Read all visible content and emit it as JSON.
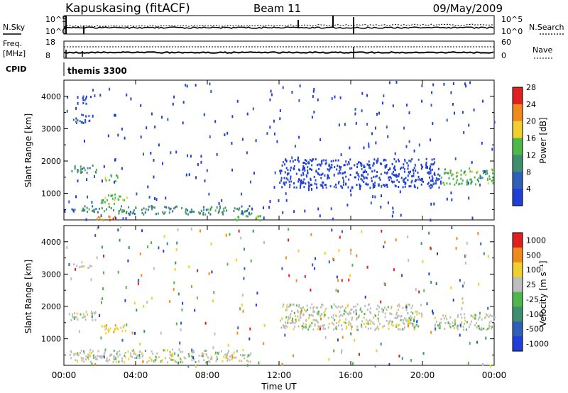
{
  "header": {
    "station": "Kapuskasing (fitACF)",
    "beam": "Beam 11",
    "date": "09/May/2009"
  },
  "params": {
    "nsky_label": "N.Sky",
    "nsearch_label": "N.Search",
    "freq_label": "Freq.",
    "freq_unit": "[MHz]",
    "nave_label": "Nave",
    "cpid_label": "CPID",
    "cpid_value": "themis 3300",
    "noise_ticks": [
      "10^5",
      "10^0"
    ],
    "noise_right_ticks": [
      "10^5",
      "10^0"
    ],
    "freq_ticks": [
      "18",
      "8"
    ],
    "nave_ticks": [
      "60",
      "0"
    ]
  },
  "chart_data": [
    {
      "type": "heatmap",
      "name": "power",
      "ylabel": "Slant Range [km]",
      "xlabel": "",
      "xlim": [
        0,
        24
      ],
      "ylim": [
        180,
        4500
      ],
      "yticks": [
        "1000",
        "2000",
        "3000",
        "4000"
      ],
      "colorbar": {
        "label": "Power [dB]",
        "ticks": [
          "4",
          "8",
          "12",
          "16",
          "20",
          "24",
          "28"
        ],
        "colors": [
          "#1f3fd8",
          "#2f5fb8",
          "#3d8f6d",
          "#4fb84a",
          "#f0d02c",
          "#f08a1c",
          "#e02020"
        ]
      },
      "bands": [
        {
          "x": [
            0.2,
            1.8
          ],
          "y": [
            1650,
            1900
          ],
          "level": 2
        },
        {
          "x": [
            0.5,
            1.5
          ],
          "y": [
            3200,
            3500
          ],
          "level": 1
        },
        {
          "x": [
            1.0,
            1.5
          ],
          "y": [
            3800,
            4100
          ],
          "level": 0
        },
        {
          "x": [
            2.0,
            3.5
          ],
          "y": [
            700,
            1000
          ],
          "level": 3
        },
        {
          "x": [
            2.0,
            3.0
          ],
          "y": [
            1400,
            1600
          ],
          "level": 3
        },
        {
          "x": [
            0.3,
            2.5
          ],
          "y": [
            450,
            650
          ],
          "level": 2
        },
        {
          "x": [
            2.5,
            10.5
          ],
          "y": [
            380,
            640
          ],
          "level": 2
        },
        {
          "x": [
            1.8,
            3.2
          ],
          "y": [
            180,
            320
          ],
          "level": 5
        },
        {
          "x": [
            9.5,
            11.0
          ],
          "y": [
            180,
            350
          ],
          "level": 3
        },
        {
          "x": [
            12.0,
            21.0
          ],
          "y": [
            1200,
            2100
          ],
          "level": 0
        },
        {
          "x": [
            21.0,
            24.0
          ],
          "y": [
            1300,
            1800
          ],
          "level": 3
        }
      ]
    },
    {
      "type": "heatmap",
      "name": "velocity",
      "ylabel": "Slant Range [km]",
      "xlabel": "Time UT",
      "xlim": [
        0,
        24
      ],
      "ylim": [
        180,
        4500
      ],
      "xticks": [
        "00:00",
        "04:00",
        "08:00",
        "12:00",
        "16:00",
        "20:00",
        "00:00"
      ],
      "yticks": [
        "1000",
        "2000",
        "3000",
        "4000"
      ],
      "colorbar": {
        "label": "Velocity [m s⁻¹]",
        "ticks": [
          "1000",
          "500",
          "100",
          "25",
          "-25",
          "-100",
          "-500",
          "-1000"
        ],
        "colors": [
          "#1f3fd8",
          "#2f5fb8",
          "#3d8f6d",
          "#4fb84a",
          "#bdbdbd",
          "#f0d02c",
          "#f08a1c",
          "#e02020"
        ]
      },
      "bands": [
        {
          "x": [
            0.2,
            1.8
          ],
          "y": [
            1600,
            1900
          ],
          "level": 4
        },
        {
          "x": [
            0.5,
            1.5
          ],
          "y": [
            3200,
            3400
          ],
          "level": 4
        },
        {
          "x": [
            2.0,
            3.5
          ],
          "y": [
            1200,
            1450
          ],
          "level": 5
        },
        {
          "x": [
            0.3,
            10.5
          ],
          "y": [
            300,
            700
          ],
          "level": 4
        },
        {
          "x": [
            20.5,
            24.0
          ],
          "y": [
            1300,
            1800
          ],
          "level": 4
        },
        {
          "x": [
            12.0,
            20.0
          ],
          "y": [
            1300,
            2100
          ],
          "level": 4
        }
      ]
    }
  ]
}
